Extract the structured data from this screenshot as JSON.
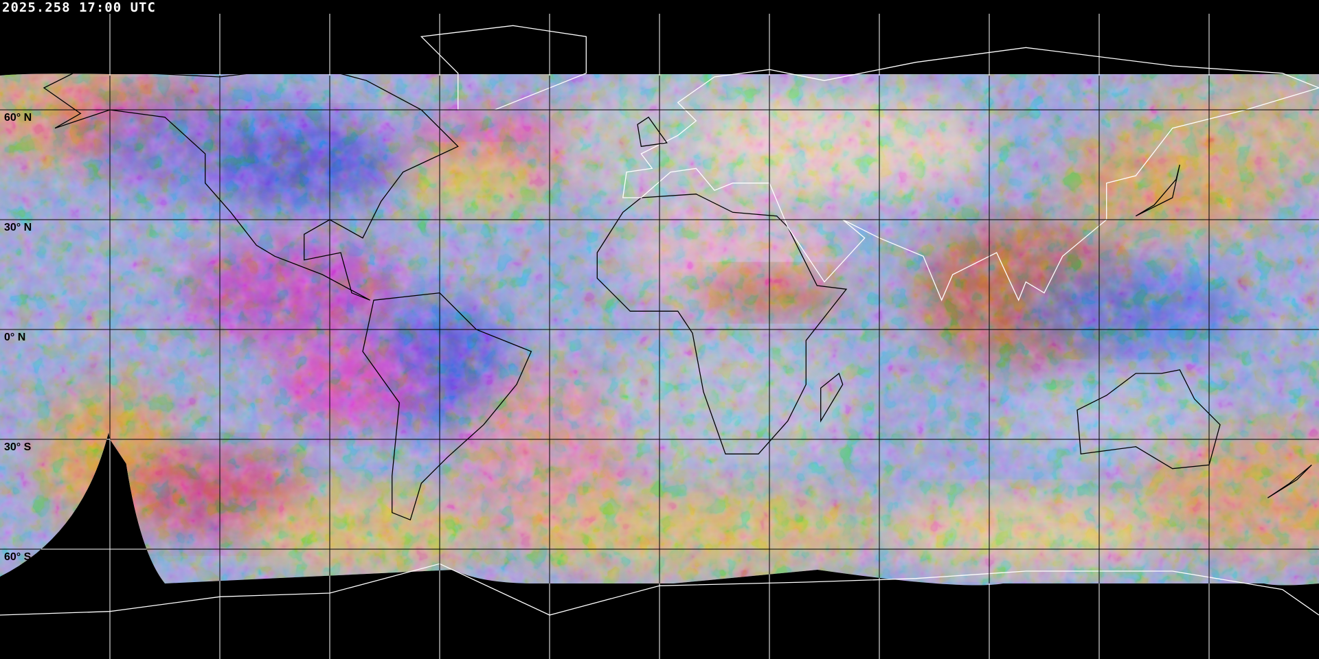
{
  "header": {
    "timestamp": "2025.258 17:00 UTC"
  },
  "map": {
    "projection": "equirectangular",
    "grid_spacing_deg": 30,
    "lat_labels": [
      "60° N",
      "30° N",
      "0° N",
      "30° S",
      "60° S"
    ],
    "gridline_color": "#000000",
    "gridline_color_outside_data": "#ffffff",
    "coastline_color_in_data": "#000000",
    "coastline_color_outside_data": "#ffffff",
    "background_color": "#000000"
  }
}
